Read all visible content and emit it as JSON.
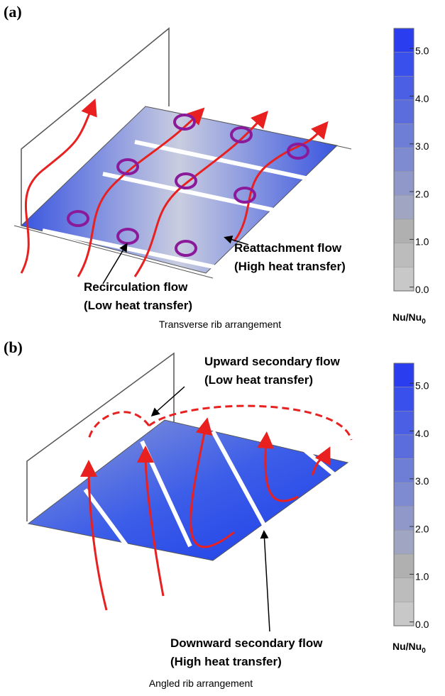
{
  "panels": [
    {
      "label": "(a)",
      "caption": "Transverse rib arrangement",
      "annotations": [
        "Reattachment flow",
        "(High heat transfer)",
        "Recirculation flow",
        "(Low heat transfer)"
      ],
      "colorbar": {
        "ticks": [
          "5.0",
          "4.0",
          "3.0",
          "2.0",
          "1.0",
          "0.0"
        ],
        "label": {
          "main": "Nu/Nu",
          "sub": "0"
        }
      }
    },
    {
      "label": "(b)",
      "caption": "Angled rib arrangement",
      "annotations": [
        "Upward secondary flow",
        "(Low heat transfer)",
        "Downward secondary flow",
        "(High heat transfer)"
      ],
      "colorbar": {
        "ticks": [
          "5.0",
          "4.0",
          "3.0",
          "2.0",
          "1.0",
          "0.0"
        ],
        "label": {
          "main": "Nu/Nu",
          "sub": "0"
        }
      }
    }
  ]
}
